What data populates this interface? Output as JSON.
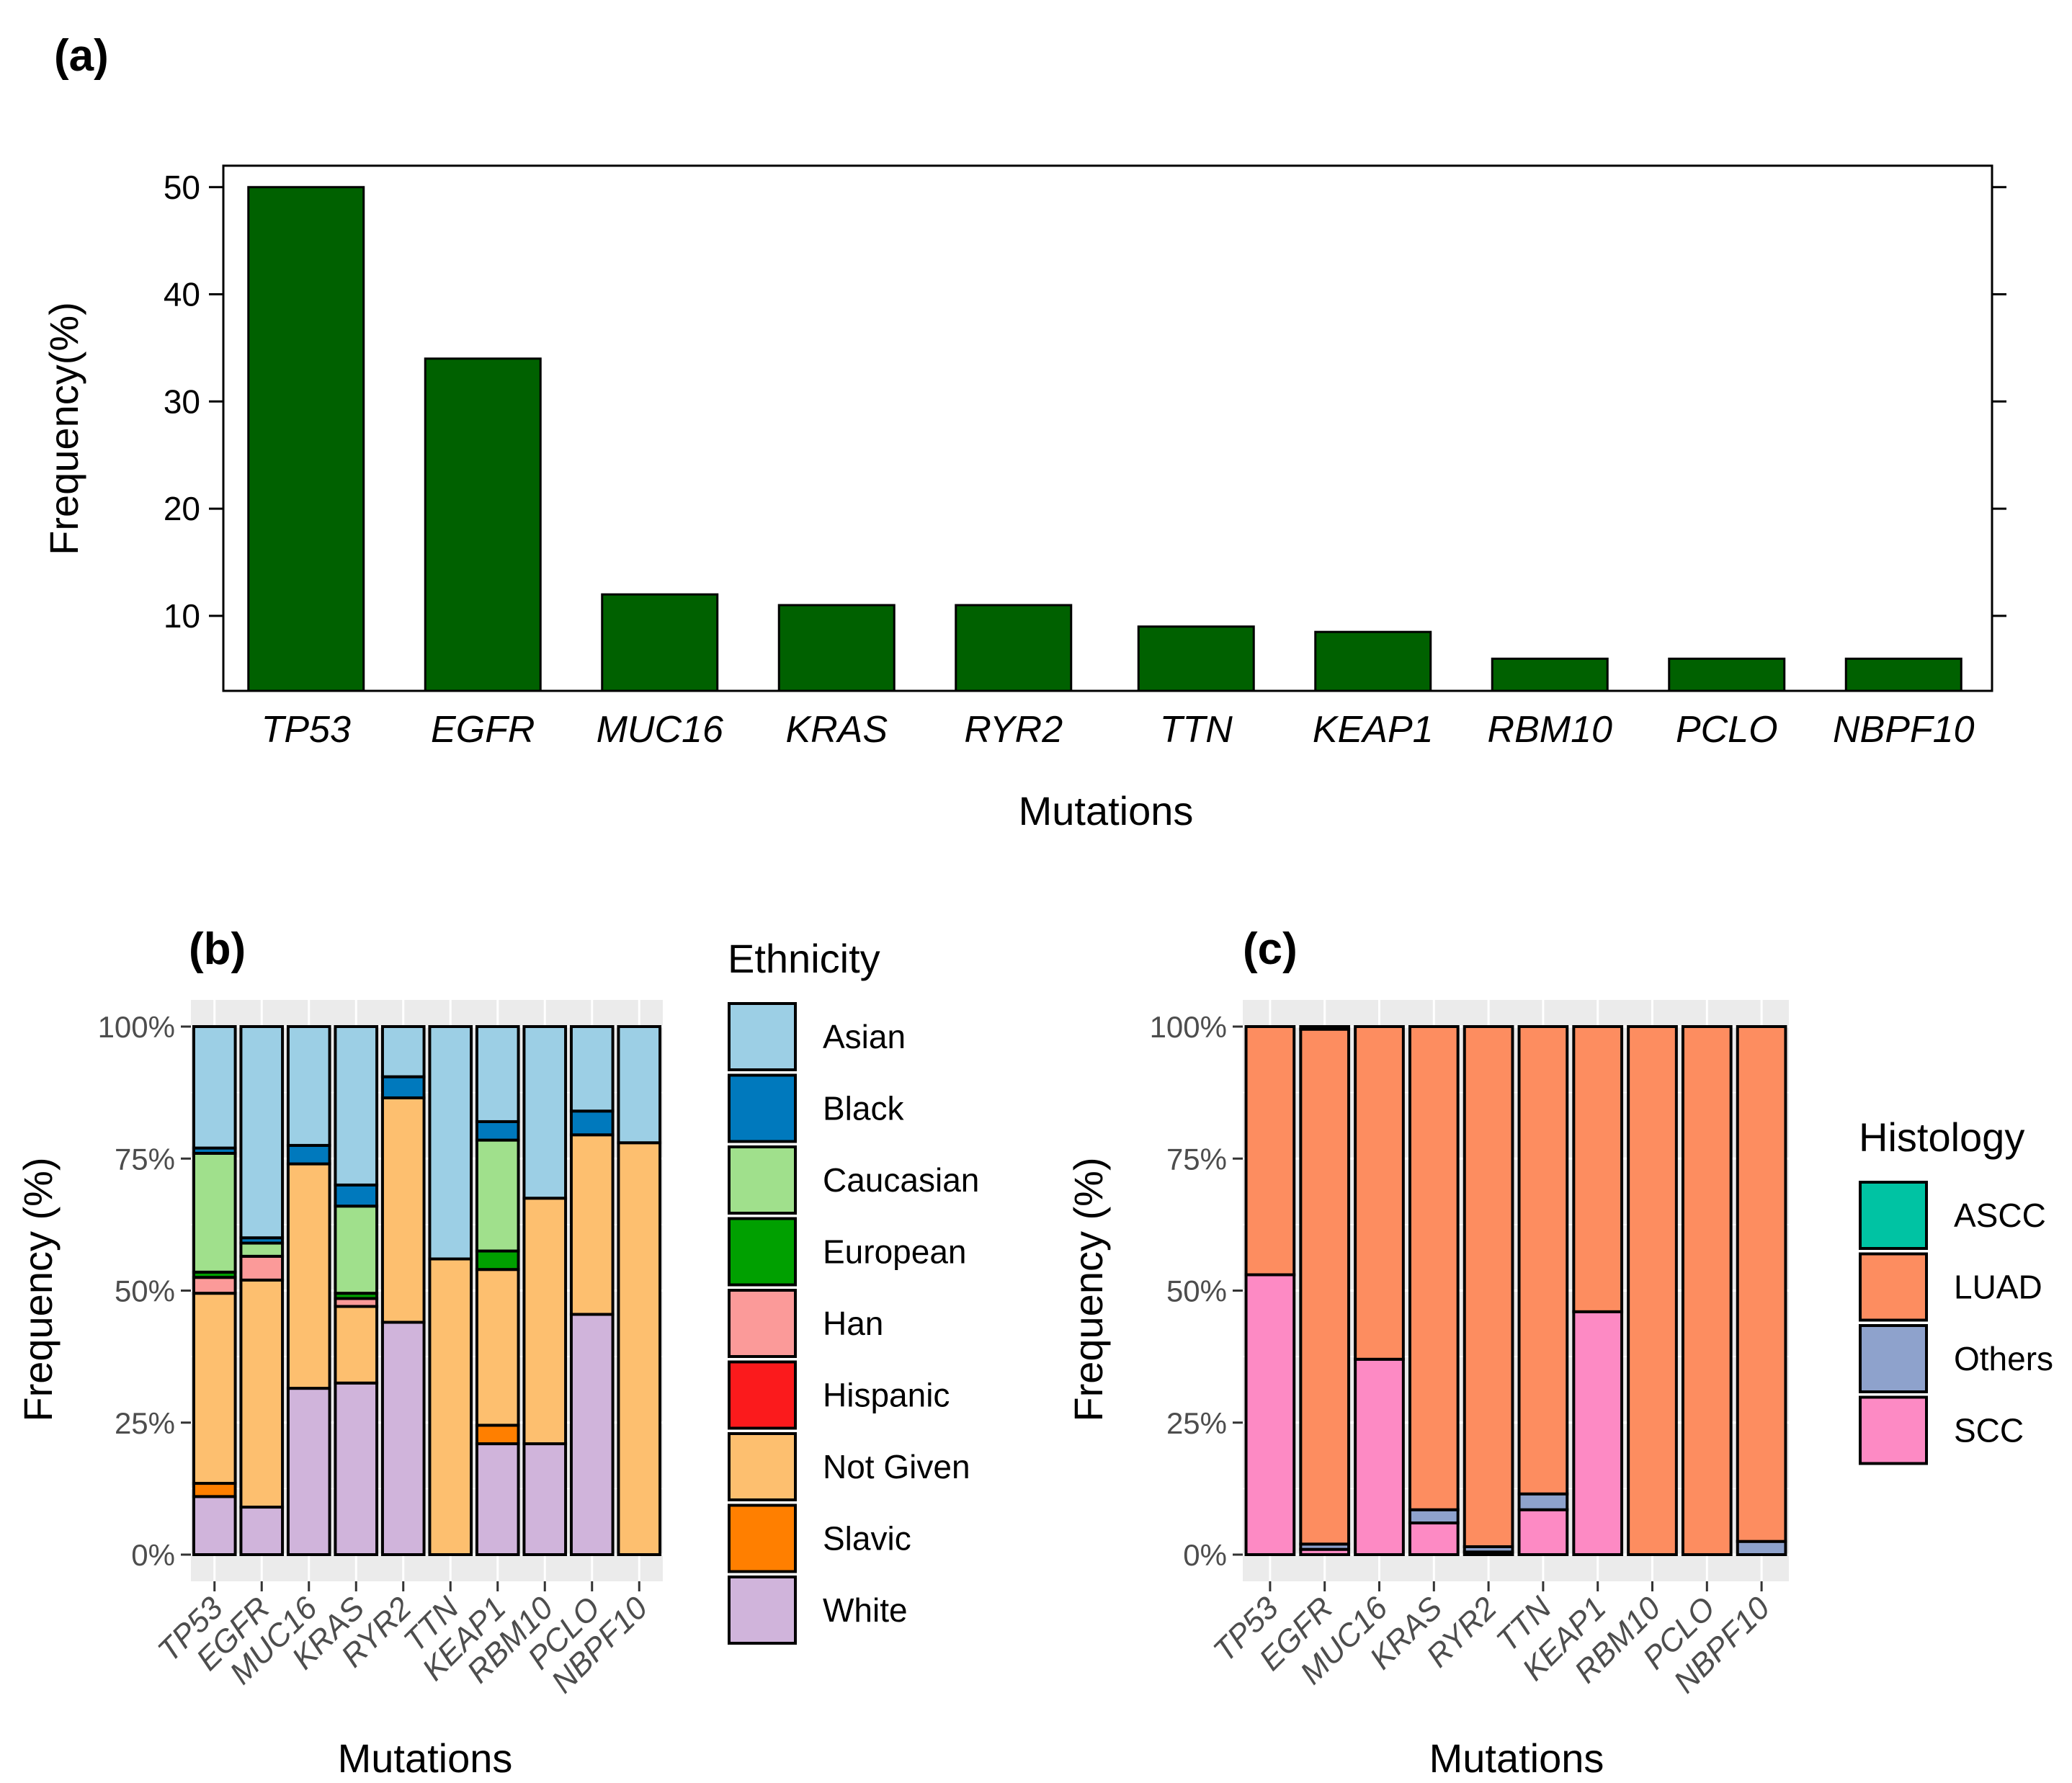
{
  "chart_data": [
    {
      "type": "bar",
      "panel": "(a)",
      "title": "",
      "xlabel": "Mutations",
      "ylabel": "Frequency(%)",
      "ylim": [
        3,
        52
      ],
      "yticks": [
        10,
        20,
        30,
        40,
        50
      ],
      "categories": [
        "TP53",
        "EGFR",
        "MUC16",
        "KRAS",
        "RYR2",
        "TTN",
        "KEAP1",
        "RBM10",
        "PCLO",
        "NBPF10"
      ],
      "values": [
        50,
        34,
        12,
        11,
        11,
        9,
        8.5,
        6,
        6,
        6
      ],
      "color": "#006100"
    },
    {
      "type": "bar",
      "stacked": true,
      "panel": "(b)",
      "xlabel": "Mutations",
      "ylabel": "Frequency (%)",
      "ylim": [
        0,
        100
      ],
      "yticks": [
        "0%",
        "25%",
        "50%",
        "75%",
        "100%"
      ],
      "legend_title": "Ethnicity",
      "legend_position": "right",
      "categories": [
        "TP53",
        "EGFR",
        "MUC16",
        "KRAS",
        "RYR2",
        "TTN",
        "KEAP1",
        "RBM10",
        "PCLO",
        "NBPF10"
      ],
      "series": [
        {
          "name": "White",
          "color": "#d0b4db",
          "values": [
            11,
            9,
            31.5,
            32.5,
            44,
            0,
            21,
            21,
            45.5,
            0
          ]
        },
        {
          "name": "Slavic",
          "color": "#ff7f00",
          "values": [
            2.5,
            0,
            0,
            0,
            0,
            0,
            3.5,
            0,
            0,
            0
          ]
        },
        {
          "name": "Not Given",
          "color": "#fdbf6f",
          "values": [
            36,
            43,
            42.5,
            14.5,
            42.5,
            56,
            29.5,
            46.5,
            34,
            78
          ]
        },
        {
          "name": "Hispanic",
          "color": "#fb1a1c",
          "values": [
            0,
            0,
            0,
            0,
            0,
            0,
            0,
            0,
            0,
            0
          ]
        },
        {
          "name": "Han",
          "color": "#fb9a99",
          "values": [
            3,
            4.5,
            0,
            1.5,
            0,
            0,
            0,
            0,
            0,
            0
          ]
        },
        {
          "name": "European",
          "color": "#00a000",
          "values": [
            1,
            0,
            0,
            1,
            0,
            0,
            3.5,
            0,
            0,
            0
          ]
        },
        {
          "name": "Caucasian",
          "color": "#a0e08c",
          "values": [
            22.5,
            2.5,
            0,
            16.5,
            0,
            0,
            21,
            0,
            0,
            0
          ]
        },
        {
          "name": "Black",
          "color": "#0079bd",
          "values": [
            1,
            1,
            3.5,
            4,
            4,
            0,
            3.5,
            0,
            4.5,
            0
          ]
        },
        {
          "name": "Asian",
          "color": "#9ccfe5",
          "values": [
            23,
            40,
            22.5,
            30,
            9.5,
            44,
            18,
            32.5,
            16,
            22
          ]
        }
      ],
      "legend_order": [
        "Asian",
        "Black",
        "Caucasian",
        "European",
        "Han",
        "Hispanic",
        "Not Given",
        "Slavic",
        "White"
      ]
    },
    {
      "type": "bar",
      "stacked": true,
      "panel": "(c)",
      "xlabel": "Mutations",
      "ylabel": "Frequency (%)",
      "ylim": [
        0,
        100
      ],
      "yticks": [
        "0%",
        "25%",
        "50%",
        "75%",
        "100%"
      ],
      "legend_title": "Histology",
      "legend_position": "right",
      "categories": [
        "TP53",
        "EGFR",
        "MUC16",
        "KRAS",
        "RYR2",
        "TTN",
        "KEAP1",
        "RBM10",
        "PCLO",
        "NBPF10"
      ],
      "series": [
        {
          "name": "SCC",
          "color": "#fd8ac4",
          "values": [
            53,
            1,
            37,
            6,
            0.5,
            8.5,
            46,
            0,
            0,
            0
          ]
        },
        {
          "name": "Others",
          "color": "#8ea2cc",
          "values": [
            0,
            1,
            0,
            2.5,
            1,
            3,
            0,
            0,
            0,
            2.5
          ]
        },
        {
          "name": "LUAD",
          "color": "#fd8d60",
          "values": [
            47,
            97.5,
            63,
            91.5,
            98.5,
            88.5,
            54,
            100,
            100,
            97.5
          ]
        },
        {
          "name": "ASCC",
          "color": "#00c3a3",
          "values": [
            0,
            0.5,
            0,
            0,
            0,
            0,
            0,
            0,
            0,
            0
          ]
        }
      ],
      "legend_order": [
        "ASCC",
        "LUAD",
        "Others",
        "SCC"
      ]
    }
  ]
}
